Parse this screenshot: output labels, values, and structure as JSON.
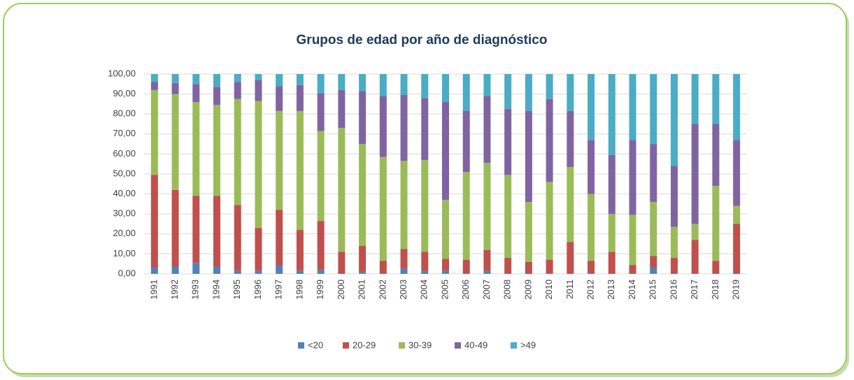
{
  "chart_data": {
    "type": "stacked_bar",
    "title": "Grupos de edad por año de diagnóstico",
    "categories": [
      "1991",
      "1992",
      "1993",
      "1994",
      "1995",
      "1996",
      "1997",
      "1998",
      "1999",
      "2000",
      "2001",
      "2002",
      "2003",
      "2004",
      "2005",
      "2006",
      "2007",
      "2008",
      "2009",
      "2010",
      "2011",
      "2012",
      "2013",
      "2014",
      "2015",
      "2016",
      "2017",
      "2018",
      "2019"
    ],
    "series": [
      {
        "name": "<20",
        "color": "#4f81bd",
        "values": [
          3,
          3.5,
          5.5,
          3.5,
          1.5,
          1.5,
          4,
          1.5,
          2,
          0,
          1,
          0,
          2.5,
          1.5,
          1.5,
          0,
          1.5,
          0,
          0,
          0,
          0,
          0,
          0,
          0,
          3,
          0,
          0,
          0,
          0
        ]
      },
      {
        "name": "20-29",
        "color": "#c0504d",
        "values": [
          46.5,
          38.5,
          33.5,
          35.5,
          33,
          21.5,
          28,
          20.5,
          24.5,
          11,
          13,
          6.5,
          10,
          9.5,
          6,
          7,
          10.5,
          8,
          6,
          7,
          16,
          6.5,
          11,
          4.5,
          6,
          8,
          17,
          6.5,
          25
        ]
      },
      {
        "name": "30-39",
        "color": "#9bbb59",
        "values": [
          42.5,
          48,
          47,
          45.5,
          53,
          63.5,
          49.5,
          59.5,
          45,
          62,
          51,
          52,
          44,
          46,
          29.5,
          44,
          43.5,
          41.5,
          30,
          39,
          37.5,
          33.5,
          19,
          25,
          27,
          15.5,
          8,
          37.5,
          9
        ]
      },
      {
        "name": "40-49",
        "color": "#8064a2",
        "values": [
          4,
          5.5,
          9,
          9,
          8.5,
          10.5,
          12.5,
          13,
          19,
          19,
          26.5,
          30.5,
          33,
          31,
          49,
          30.5,
          33.5,
          33,
          45.5,
          41.5,
          28,
          27,
          29.5,
          37.5,
          29,
          30.5,
          50,
          31,
          33
        ]
      },
      {
        "name": ">49",
        "color": "#4bacc6",
        "values": [
          4,
          4.5,
          5,
          6.5,
          4,
          3,
          6,
          5.5,
          9.5,
          8,
          8.5,
          11,
          10.5,
          12,
          14,
          18.5,
          11,
          17.5,
          18.5,
          12.5,
          18.5,
          33,
          40.5,
          33,
          35,
          46,
          25,
          25,
          33
        ]
      }
    ],
    "ylim": [
      0,
      100
    ],
    "yticks": [
      {
        "value": 0,
        "label": "0,00"
      },
      {
        "value": 10,
        "label": "10,00"
      },
      {
        "value": 20,
        "label": "20,00"
      },
      {
        "value": 30,
        "label": "30,00"
      },
      {
        "value": 40,
        "label": "40,00"
      },
      {
        "value": 50,
        "label": "50,00"
      },
      {
        "value": 60,
        "label": "60,00"
      },
      {
        "value": 70,
        "label": "70,00"
      },
      {
        "value": 80,
        "label": "80,00"
      },
      {
        "value": 90,
        "label": "90,00"
      },
      {
        "value": 100,
        "label": "100,00"
      }
    ],
    "grid": true,
    "legend": "bottom"
  }
}
